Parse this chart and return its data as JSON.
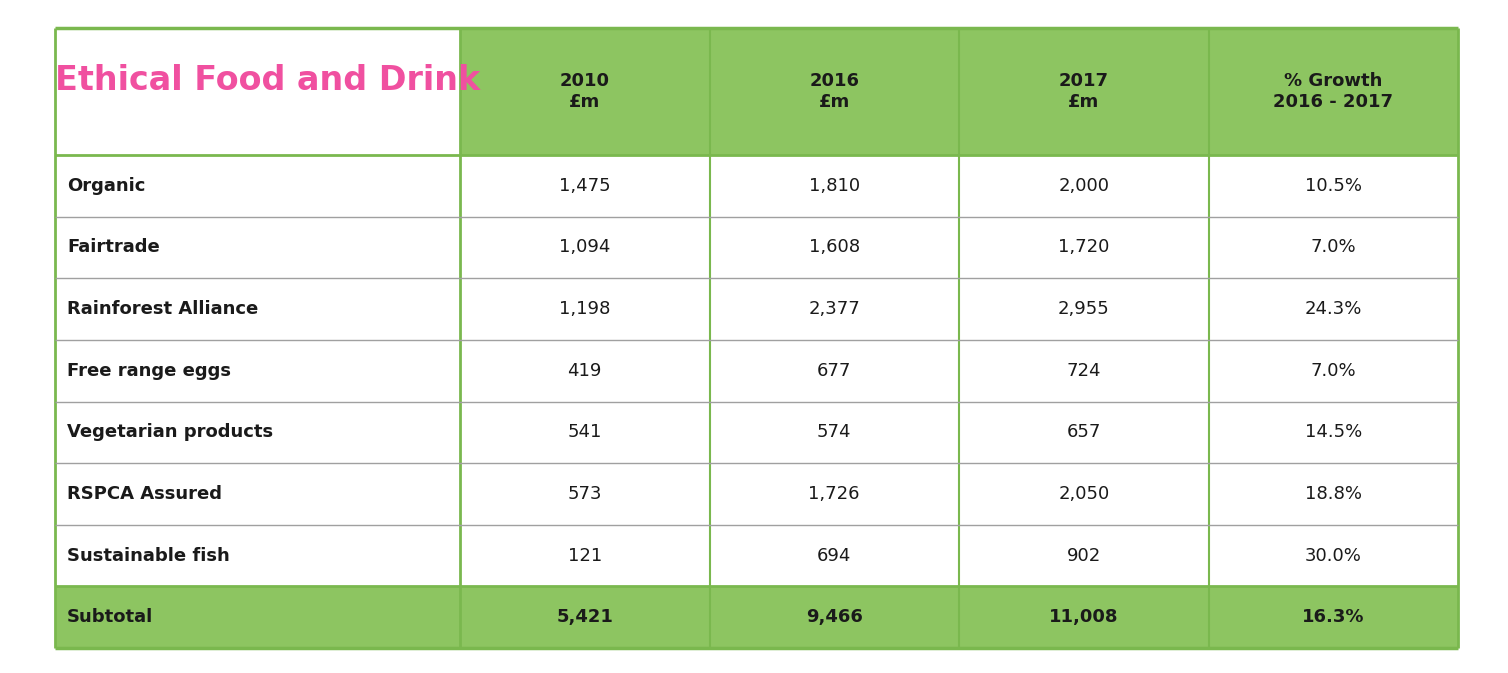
{
  "title": "Ethical Food and Drink",
  "title_color": "#f050a0",
  "columns": [
    "2010\n£m",
    "2016\n£m",
    "2017\n£m",
    "% Growth\n2016 - 2017"
  ],
  "rows": [
    [
      "Organic",
      "1,475",
      "1,810",
      "2,000",
      "10.5%"
    ],
    [
      "Fairtrade",
      "1,094",
      "1,608",
      "1,720",
      "7.0%"
    ],
    [
      "Rainforest Alliance",
      "1,198",
      "2,377",
      "2,955",
      "24.3%"
    ],
    [
      "Free range eggs",
      "419",
      "677",
      "724",
      "7.0%"
    ],
    [
      "Vegetarian products",
      "541",
      "574",
      "657",
      "14.5%"
    ],
    [
      "RSPCA Assured",
      "573",
      "1,726",
      "2,050",
      "18.8%"
    ],
    [
      "Sustainable fish",
      "121",
      "694",
      "902",
      "30.0%"
    ],
    [
      "Subtotal",
      "5,421",
      "9,466",
      "11,008",
      "16.3%"
    ]
  ],
  "header_bg": "#8dc561",
  "header_text_color": "#1a1a1a",
  "subtotal_bg": "#8dc561",
  "data_bg": "#ffffff",
  "grid_color": "#a0a0a0",
  "border_color": "#7ab84e",
  "background_color": "#ffffff",
  "label_fontsize": 13,
  "header_fontsize": 13,
  "data_fontsize": 13,
  "title_fontsize": 24
}
